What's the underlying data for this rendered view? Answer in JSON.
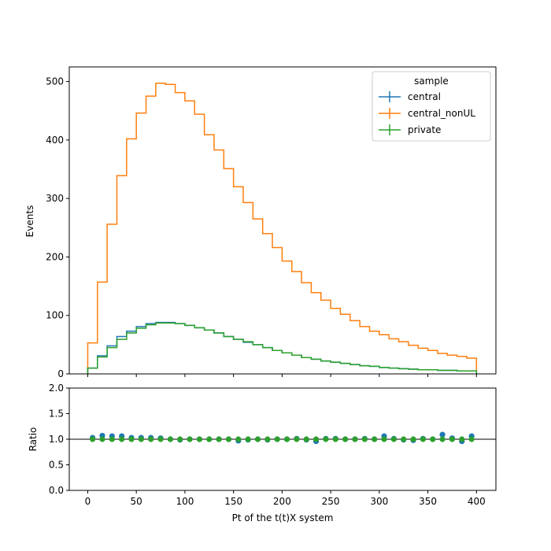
{
  "chart_data": [
    {
      "type": "histogram-step",
      "xlabel": "",
      "ylabel": "Events",
      "xlim": [
        -19,
        420
      ],
      "ylim": [
        0,
        525
      ],
      "xticks": [
        "0",
        "50",
        "100",
        "150",
        "200",
        "250",
        "300",
        "350",
        "400"
      ],
      "yticks": [
        "0",
        "100",
        "200",
        "300",
        "400",
        "500"
      ],
      "grid": false,
      "legend": {
        "title": "sample",
        "placement": "top-right",
        "entries": [
          "central",
          "central_nonUL",
          "private"
        ]
      },
      "bin_edges": [
        0,
        10,
        20,
        30,
        40,
        50,
        60,
        70,
        80,
        90,
        100,
        110,
        120,
        130,
        140,
        150,
        160,
        170,
        180,
        190,
        200,
        210,
        220,
        230,
        240,
        250,
        260,
        270,
        280,
        290,
        300,
        310,
        320,
        330,
        340,
        350,
        360,
        370,
        380,
        390,
        400
      ],
      "series": [
        {
          "name": "central",
          "color": "#1f77b4",
          "values": [
            10,
            31,
            48,
            64,
            73,
            81,
            86,
            88,
            88,
            86,
            83,
            79,
            75,
            70,
            64,
            59,
            54,
            50,
            45,
            40,
            36,
            32,
            28,
            25,
            22,
            20,
            18,
            16,
            14,
            13,
            11,
            10,
            9,
            8,
            7,
            7,
            6,
            6,
            5,
            5
          ]
        },
        {
          "name": "central_nonUL",
          "color": "#ff7f0e",
          "values": [
            53,
            157,
            256,
            339,
            402,
            446,
            475,
            497,
            495,
            481,
            467,
            444,
            409,
            383,
            351,
            320,
            293,
            265,
            240,
            216,
            193,
            175,
            156,
            139,
            126,
            112,
            102,
            91,
            81,
            73,
            67,
            60,
            55,
            49,
            44,
            40,
            35,
            32,
            30,
            27
          ]
        },
        {
          "name": "private",
          "color": "#2ca02c",
          "values": [
            10,
            29,
            45,
            59,
            70,
            78,
            84,
            87,
            87,
            86,
            83,
            79,
            75,
            70,
            64,
            59,
            55,
            50,
            45,
            40,
            36,
            32,
            28,
            25,
            22,
            20,
            18,
            16,
            14,
            13,
            11,
            10,
            9,
            8,
            7,
            7,
            6,
            6,
            5,
            5
          ]
        }
      ]
    },
    {
      "type": "scatter",
      "xlabel": "Pt of the t(t)X system",
      "ylabel": "Ratio",
      "xlim": [
        -19,
        420
      ],
      "ylim": [
        0,
        2
      ],
      "xticks": [
        "0",
        "50",
        "100",
        "150",
        "200",
        "250",
        "300",
        "350",
        "400"
      ],
      "yticks": [
        "0.0",
        "0.5",
        "1.0",
        "1.5",
        "2.0"
      ],
      "reference_line": 1.0,
      "x": [
        5,
        15,
        25,
        35,
        45,
        55,
        65,
        75,
        85,
        95,
        105,
        115,
        125,
        135,
        145,
        155,
        165,
        175,
        185,
        195,
        205,
        215,
        225,
        235,
        245,
        255,
        265,
        275,
        285,
        295,
        305,
        315,
        325,
        335,
        345,
        355,
        365,
        375,
        385,
        395
      ],
      "series": [
        {
          "name": "central",
          "color": "#1f77b4",
          "values": [
            1.03,
            1.07,
            1.06,
            1.06,
            1.03,
            1.03,
            1.03,
            1.02,
            1.0,
            0.99,
            1.0,
            1.0,
            1.0,
            1.0,
            1.0,
            0.97,
            0.99,
            1.0,
            0.99,
            1.0,
            1.0,
            1.01,
            0.99,
            0.96,
            1.01,
            1.01,
            1.0,
            1.0,
            1.01,
            1.0,
            1.06,
            1.01,
            0.99,
            0.98,
            1.01,
            1.0,
            1.09,
            1.02,
            0.96,
            1.06
          ]
        },
        {
          "name": "private",
          "color": "#2ca02c",
          "values": [
            1.0,
            1.0,
            1.0,
            1.0,
            1.0,
            1.0,
            1.0,
            1.0,
            1.0,
            1.0,
            1.0,
            1.0,
            1.0,
            1.0,
            1.0,
            1.0,
            1.0,
            1.0,
            1.0,
            1.0,
            1.0,
            1.0,
            1.0,
            1.0,
            1.0,
            1.0,
            1.0,
            1.0,
            1.0,
            1.0,
            1.0,
            1.0,
            1.0,
            1.0,
            1.0,
            1.0,
            1.0,
            1.0,
            1.0,
            1.0
          ]
        }
      ]
    }
  ]
}
